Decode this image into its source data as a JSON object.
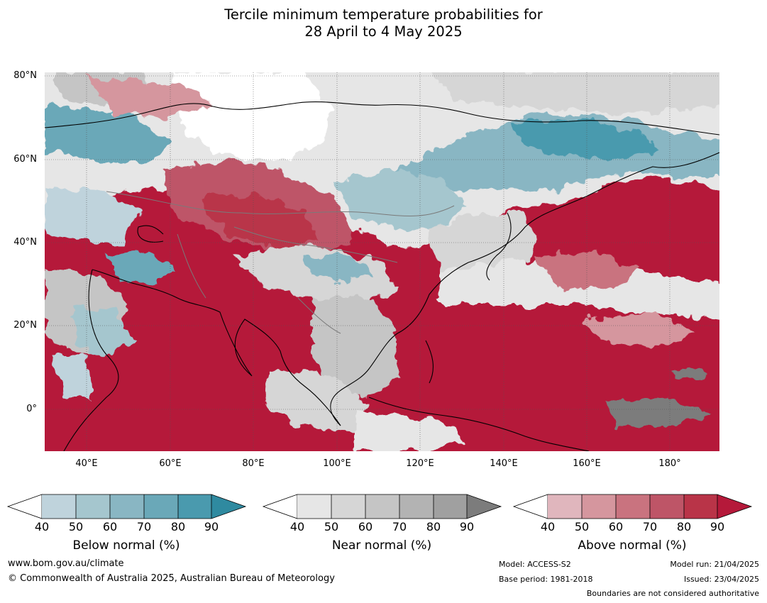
{
  "title": {
    "line1": "Tercile minimum temperature probabilities for",
    "line2": "28 April to 4 May 2025"
  },
  "map": {
    "lat_labels": [
      "80°N",
      "60°N",
      "40°N",
      "20°N",
      "0°"
    ],
    "lon_labels": [
      "40°E",
      "60°E",
      "80°E",
      "100°E",
      "120°E",
      "140°E",
      "160°E",
      "180°"
    ],
    "lon_range": [
      30,
      191
    ],
    "lat_range": [
      -10,
      81
    ],
    "colors": {
      "below": [
        "#bfd3dc",
        "#a5c6ce",
        "#89b6c3",
        "#6aa8b8",
        "#4a9aae",
        "#2f8aa0"
      ],
      "near": [
        "#e6e6e6",
        "#d6d6d6",
        "#c5c5c5",
        "#b3b3b3",
        "#a0a0a0",
        "#7c7c7c"
      ],
      "above": [
        "#e0b6bd",
        "#d5969e",
        "#c9737f",
        "#be5567",
        "#b93448",
        "#b5193a"
      ]
    }
  },
  "colorbars": [
    {
      "name": "below",
      "title": "Below normal (%)",
      "ticks": [
        "40",
        "50",
        "60",
        "70",
        "80",
        "90"
      ]
    },
    {
      "name": "near",
      "title": "Near normal (%)",
      "ticks": [
        "40",
        "50",
        "60",
        "70",
        "80",
        "90"
      ]
    },
    {
      "name": "above",
      "title": "Above normal (%)",
      "ticks": [
        "40",
        "50",
        "60",
        "70",
        "80",
        "90"
      ]
    }
  ],
  "footer": {
    "website": "www.bom.gov.au/climate",
    "copyright": "© Commonwealth of Australia 2025, Australian Bureau of Meteorology",
    "model": "Model: ACCESS-S2",
    "base_period": "Base period: 1981-2018",
    "model_run": "Model run: 21/04/2025",
    "issued": "Issued: 23/04/2025",
    "disclaimer": "Boundaries are not considered authoritative"
  }
}
